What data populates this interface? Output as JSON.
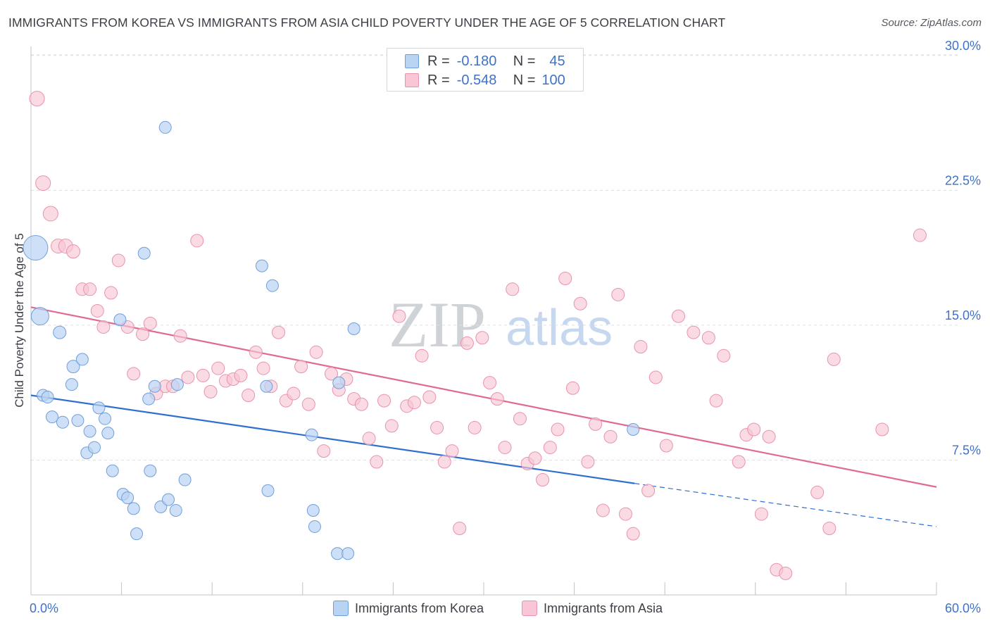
{
  "header": {
    "title": "IMMIGRANTS FROM KOREA VS IMMIGRANTS FROM ASIA CHILD POVERTY UNDER THE AGE OF 5 CORRELATION CHART",
    "source": "Source: ZipAtlas.com"
  },
  "legend": {
    "rows": [
      {
        "r_label": "R =",
        "r_value": "-0.180",
        "n_label": "N =",
        "n_value": "45"
      },
      {
        "r_label": "R =",
        "r_value": "-0.548",
        "n_label": "N =",
        "n_value": "100"
      }
    ]
  },
  "bottom_legend": {
    "korea": "Immigrants from Korea",
    "asia": "Immigrants from Asia"
  },
  "watermark": {
    "zip": "ZIP",
    "atlas": "atlas"
  },
  "colors": {
    "korea_fill": "#b9d3f3",
    "korea_stroke": "#6f9fdb",
    "korea_line": "#2f6fd0",
    "asia_fill": "#f8c6d4",
    "asia_stroke": "#e993ae",
    "asia_line": "#e06a92",
    "tick_text": "#3f72c7",
    "grid": "#dcdfe3"
  },
  "chart_data": {
    "type": "scatter",
    "title": "IMMIGRANTS FROM KOREA VS IMMIGRANTS FROM ASIA CHILD POVERTY UNDER THE AGE OF 5 CORRELATION CHART",
    "xlabel": "",
    "ylabel": "Child Poverty Under the Age of 5",
    "xlim": [
      0,
      60
    ],
    "ylim": [
      0,
      30.5
    ],
    "x_tick_labels": [
      "0.0%",
      "60.0%"
    ],
    "y_ticks": [
      7.5,
      15.0,
      22.5,
      30.0
    ],
    "y_tick_labels": [
      "7.5%",
      "15.0%",
      "22.5%",
      "30.0%"
    ],
    "grid": "horizontal dashed",
    "legend_placement": "top-center",
    "series": [
      {
        "name": "Immigrants from Korea",
        "r": -0.18,
        "n": 45,
        "trend": {
          "x0": 0,
          "y0": 11.1,
          "x1": 40,
          "y1": 6.2,
          "dashed_to_x": 60,
          "dashed_to_y": 3.8
        },
        "points": [
          [
            0.3,
            19.3,
            32
          ],
          [
            0.6,
            15.5,
            22
          ],
          [
            0.8,
            11.1,
            14
          ],
          [
            1.1,
            11.0,
            14
          ],
          [
            1.4,
            9.9,
            14
          ],
          [
            1.9,
            14.6,
            15
          ],
          [
            2.1,
            9.6,
            14
          ],
          [
            2.7,
            11.7,
            14
          ],
          [
            2.8,
            12.7,
            15
          ],
          [
            3.1,
            9.7,
            14
          ],
          [
            3.4,
            13.1,
            14
          ],
          [
            3.7,
            7.9,
            14
          ],
          [
            3.9,
            9.1,
            14
          ],
          [
            4.2,
            8.2,
            14
          ],
          [
            4.5,
            10.4,
            14
          ],
          [
            4.9,
            9.8,
            14
          ],
          [
            5.1,
            9.0,
            14
          ],
          [
            5.4,
            6.9,
            14
          ],
          [
            5.9,
            15.3,
            14
          ],
          [
            6.1,
            5.6,
            14
          ],
          [
            6.4,
            5.4,
            14
          ],
          [
            6.8,
            4.8,
            14
          ],
          [
            7.0,
            3.4,
            14
          ],
          [
            7.5,
            19.0,
            14
          ],
          [
            7.8,
            10.9,
            14
          ],
          [
            7.9,
            6.9,
            14
          ],
          [
            8.2,
            11.6,
            14
          ],
          [
            8.6,
            4.9,
            14
          ],
          [
            8.9,
            26.0,
            14
          ],
          [
            9.1,
            5.3,
            14
          ],
          [
            9.6,
            4.7,
            14
          ],
          [
            9.7,
            11.7,
            14
          ],
          [
            10.2,
            6.4,
            14
          ],
          [
            15.3,
            18.3,
            14
          ],
          [
            15.7,
            5.8,
            14
          ],
          [
            15.6,
            11.6,
            14
          ],
          [
            16.0,
            17.2,
            14
          ],
          [
            18.7,
            4.7,
            14
          ],
          [
            18.8,
            3.8,
            14
          ],
          [
            18.6,
            8.9,
            14
          ],
          [
            20.3,
            2.3,
            14
          ],
          [
            20.4,
            11.8,
            14
          ],
          [
            21.4,
            14.8,
            14
          ],
          [
            21.0,
            2.3,
            14
          ],
          [
            39.9,
            9.2,
            14
          ]
        ]
      },
      {
        "name": "Immigrants from Asia",
        "r": -0.548,
        "n": 100,
        "trend": {
          "x0": 0,
          "y0": 16.0,
          "x1": 60,
          "y1": 6.0
        },
        "points": [
          [
            0.4,
            27.6,
            18
          ],
          [
            0.8,
            22.9,
            18
          ],
          [
            1.3,
            21.2,
            18
          ],
          [
            1.8,
            19.4,
            17
          ],
          [
            2.3,
            19.4,
            17
          ],
          [
            2.8,
            19.1,
            16
          ],
          [
            3.4,
            17.0,
            15
          ],
          [
            3.9,
            17.0,
            15
          ],
          [
            4.4,
            15.8,
            15
          ],
          [
            4.8,
            14.9,
            15
          ],
          [
            5.3,
            16.8,
            15
          ],
          [
            5.8,
            18.6,
            15
          ],
          [
            6.4,
            14.9,
            15
          ],
          [
            6.8,
            12.3,
            15
          ],
          [
            7.4,
            14.5,
            15
          ],
          [
            7.9,
            15.1,
            15
          ],
          [
            8.3,
            11.2,
            15
          ],
          [
            8.9,
            11.6,
            15
          ],
          [
            9.4,
            11.6,
            15
          ],
          [
            9.9,
            14.4,
            15
          ],
          [
            10.4,
            12.1,
            15
          ],
          [
            11.0,
            19.7,
            15
          ],
          [
            11.4,
            12.2,
            15
          ],
          [
            11.9,
            11.3,
            15
          ],
          [
            12.4,
            12.6,
            15
          ],
          [
            12.9,
            11.9,
            15
          ],
          [
            13.4,
            12.0,
            15
          ],
          [
            13.9,
            12.2,
            15
          ],
          [
            14.4,
            11.1,
            15
          ],
          [
            14.9,
            13.5,
            15
          ],
          [
            15.4,
            12.6,
            15
          ],
          [
            15.9,
            11.6,
            15
          ],
          [
            16.4,
            14.6,
            15
          ],
          [
            16.9,
            10.8,
            15
          ],
          [
            17.4,
            11.2,
            15
          ],
          [
            17.9,
            12.7,
            15
          ],
          [
            18.4,
            10.6,
            15
          ],
          [
            18.9,
            13.5,
            15
          ],
          [
            19.4,
            8.0,
            15
          ],
          [
            19.9,
            12.3,
            15
          ],
          [
            20.4,
            11.4,
            15
          ],
          [
            20.9,
            12.0,
            15
          ],
          [
            21.4,
            10.9,
            15
          ],
          [
            21.9,
            10.6,
            15
          ],
          [
            22.4,
            8.7,
            15
          ],
          [
            22.9,
            7.4,
            15
          ],
          [
            23.4,
            10.8,
            15
          ],
          [
            23.9,
            9.4,
            15
          ],
          [
            24.4,
            15.5,
            15
          ],
          [
            24.9,
            10.5,
            15
          ],
          [
            25.4,
            10.7,
            15
          ],
          [
            25.9,
            13.3,
            15
          ],
          [
            26.4,
            11.0,
            15
          ],
          [
            26.9,
            9.3,
            15
          ],
          [
            27.4,
            7.4,
            15
          ],
          [
            27.9,
            8.0,
            15
          ],
          [
            28.4,
            3.7,
            15
          ],
          [
            28.9,
            14.0,
            15
          ],
          [
            29.4,
            9.3,
            15
          ],
          [
            29.9,
            14.3,
            15
          ],
          [
            30.4,
            11.8,
            15
          ],
          [
            30.9,
            10.9,
            15
          ],
          [
            31.4,
            8.2,
            15
          ],
          [
            31.9,
            17.0,
            15
          ],
          [
            32.4,
            9.8,
            15
          ],
          [
            32.9,
            7.3,
            15
          ],
          [
            33.4,
            7.6,
            15
          ],
          [
            33.9,
            6.4,
            15
          ],
          [
            34.4,
            8.2,
            15
          ],
          [
            34.9,
            9.2,
            15
          ],
          [
            35.4,
            17.6,
            15
          ],
          [
            35.9,
            11.5,
            15
          ],
          [
            36.4,
            16.2,
            15
          ],
          [
            36.9,
            7.4,
            15
          ],
          [
            37.4,
            9.5,
            15
          ],
          [
            37.9,
            4.7,
            15
          ],
          [
            38.4,
            8.8,
            15
          ],
          [
            38.9,
            16.7,
            15
          ],
          [
            39.4,
            4.5,
            15
          ],
          [
            39.9,
            3.4,
            15
          ],
          [
            40.4,
            13.8,
            15
          ],
          [
            40.9,
            5.8,
            15
          ],
          [
            41.4,
            12.1,
            15
          ],
          [
            42.1,
            8.3,
            15
          ],
          [
            42.9,
            15.5,
            15
          ],
          [
            43.9,
            14.6,
            15
          ],
          [
            44.9,
            14.3,
            15
          ],
          [
            45.4,
            10.8,
            15
          ],
          [
            45.9,
            13.3,
            15
          ],
          [
            46.9,
            7.4,
            15
          ],
          [
            47.4,
            8.9,
            15
          ],
          [
            47.9,
            9.2,
            15
          ],
          [
            48.9,
            8.8,
            15
          ],
          [
            48.4,
            4.5,
            15
          ],
          [
            49.4,
            1.4,
            15
          ],
          [
            50.0,
            1.2,
            15
          ],
          [
            52.1,
            5.7,
            15
          ],
          [
            53.2,
            13.1,
            15
          ],
          [
            52.9,
            3.7,
            15
          ],
          [
            56.4,
            9.2,
            15
          ],
          [
            58.9,
            20.0,
            15
          ]
        ]
      }
    ]
  }
}
